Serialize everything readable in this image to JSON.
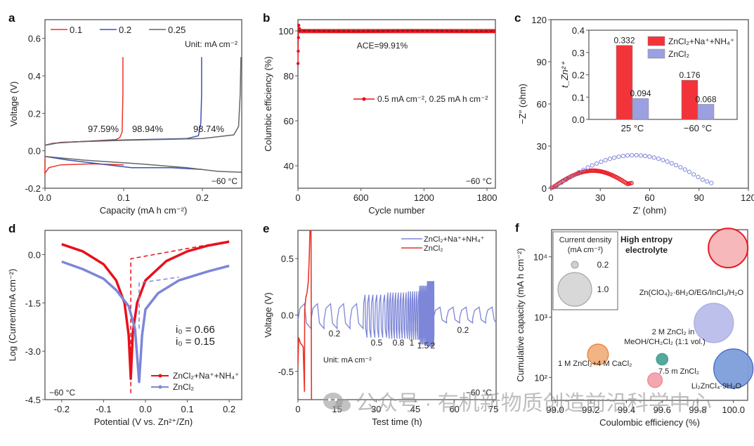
{
  "watermark": {
    "text": "公众号 · 有机新物质创造前沿科学中心",
    "icon": "wechat-icon"
  },
  "chart_data": [
    {
      "panel": "a",
      "type": "line",
      "xlabel": "Capacity (mA h cm⁻²)",
      "ylabel": "Voltage (V)",
      "xlim": [
        0,
        0.25
      ],
      "ylim": [
        -0.2,
        0.7
      ],
      "xticks": [
        0.0,
        0.1,
        0.2
      ],
      "yticks": [
        -0.2,
        0.0,
        0.2,
        0.4,
        0.6
      ],
      "xtick_labels": [
        "0.0",
        "0.1",
        "0.2"
      ],
      "ytick_labels": [
        "-0.2",
        "0.0",
        "0.2",
        "0.4",
        "0.6"
      ],
      "legend_position": "top",
      "unit_note": "Unit: mA cm⁻²",
      "temperature": "−60 °C",
      "series": [
        {
          "name": "0.1",
          "color": "#e8342a",
          "charge": [
            [
              0,
              0.03
            ],
            [
              0.01,
              0.04
            ],
            [
              0.05,
              0.05
            ],
            [
              0.09,
              0.06
            ],
            [
              0.095,
              0.07
            ],
            [
              0.098,
              0.1
            ],
            [
              0.099,
              0.3
            ],
            [
              0.099,
              0.5
            ]
          ],
          "discharge": [
            [
              0,
              -0.04
            ],
            [
              0.0,
              -0.12
            ],
            [
              0.005,
              -0.09
            ],
            [
              0.02,
              -0.075
            ],
            [
              0.06,
              -0.07
            ],
            [
              0.1,
              -0.075
            ]
          ],
          "ce_label": "97.59%"
        },
        {
          "name": "0.2",
          "color": "#3a53b5",
          "charge": [
            [
              0,
              0.03
            ],
            [
              0.02,
              0.045
            ],
            [
              0.1,
              0.058
            ],
            [
              0.18,
              0.065
            ],
            [
              0.195,
              0.08
            ],
            [
              0.198,
              0.15
            ],
            [
              0.199,
              0.3
            ],
            [
              0.199,
              0.5
            ]
          ],
          "discharge": [
            [
              0,
              -0.03
            ],
            [
              0.03,
              -0.05
            ],
            [
              0.08,
              -0.075
            ],
            [
              0.11,
              -0.09
            ],
            [
              0.16,
              -0.09
            ],
            [
              0.2,
              -0.1
            ]
          ],
          "ce_label": "98.94%"
        },
        {
          "name": "0.25",
          "color": "#666666",
          "charge": [
            [
              0,
              0.03
            ],
            [
              0.02,
              0.045
            ],
            [
              0.1,
              0.056
            ],
            [
              0.2,
              0.065
            ],
            [
              0.24,
              0.085
            ],
            [
              0.246,
              0.13
            ],
            [
              0.248,
              0.3
            ],
            [
              0.249,
              0.5
            ]
          ],
          "discharge": [
            [
              0,
              -0.03
            ],
            [
              0.05,
              -0.05
            ],
            [
              0.12,
              -0.07
            ],
            [
              0.18,
              -0.09
            ],
            [
              0.22,
              -0.11
            ],
            [
              0.25,
              -0.115
            ]
          ],
          "ce_label": "98.74%"
        }
      ]
    },
    {
      "panel": "b",
      "type": "scatter",
      "xlabel": "Cycle number",
      "ylabel": "Columbic efficiency (%)",
      "xlim": [
        0,
        1880
      ],
      "ylim": [
        30,
        105
      ],
      "xticks": [
        0,
        600,
        1200,
        1800
      ],
      "yticks": [
        40,
        60,
        80,
        100
      ],
      "xtick_labels": [
        "0",
        "600",
        "1200",
        "1800"
      ],
      "ytick_labels": [
        "40",
        "60",
        "80",
        "100"
      ],
      "annotation": "ACE=99.91%",
      "temperature": "−60 °C",
      "legend_position": "center-right",
      "series": [
        {
          "name": "0.5 mA cm⁻², 0.25 mA h cm⁻²",
          "color": "#e8101a",
          "initial_points": [
            [
              1,
              85.5
            ],
            [
              3,
              91
            ],
            [
              5,
              97
            ],
            [
              8,
              102.5
            ],
            [
              15,
              101
            ]
          ],
          "steady_value": 99.91,
          "cycles_to": 1880
        }
      ],
      "reference_line": 100
    },
    {
      "panel": "c",
      "type": "scatter",
      "xlabel": "Z′ (ohm)",
      "ylabel": "−Z″ (ohm)",
      "xlim": [
        0,
        120
      ],
      "ylim": [
        0,
        120
      ],
      "xticks": [
        0,
        30,
        60,
        90,
        120
      ],
      "yticks": [
        0,
        30,
        60,
        90,
        120
      ],
      "xtick_labels": [
        "0",
        "30",
        "60",
        "90",
        "120"
      ],
      "ytick_labels": [
        "0",
        "30",
        "60",
        "90",
        "120"
      ],
      "series": [
        {
          "name": "ZnCl₂+Na⁺+NH₄⁺",
          "color": "#e8101a",
          "arc": {
            "start": 0.5,
            "end": 49,
            "peak_y": 12.5,
            "peak_x": 23,
            "end_y": 2.5
          }
        },
        {
          "name": "ZnCl₂",
          "color": "#7d86d8",
          "arc": {
            "start": 1,
            "end": 97.5,
            "peak_y": 23.5,
            "peak_x": 52,
            "end_y": 1.5
          }
        }
      ],
      "inset": {
        "type": "bar",
        "ylabel": "t_Zn²⁺",
        "ylim": [
          0,
          0.4
        ],
        "yticks": [
          0.0,
          0.1,
          0.2,
          0.3,
          0.4
        ],
        "ytick_labels": [
          "0.0",
          "0.1",
          "0.2",
          "0.3",
          "0.4"
        ],
        "categories": [
          "25 °C",
          "−60 °C"
        ],
        "legend_position": "top-right",
        "series": [
          {
            "name": "ZnCl₂+Na⁺+NH₄⁺",
            "color": "#f2333a",
            "values": [
              0.332,
              0.176
            ],
            "labels": [
              "0.332",
              "0.176"
            ]
          },
          {
            "name": "ZnCl₂",
            "color": "#9aa0e0",
            "values": [
              0.094,
              0.068
            ],
            "labels": [
              "0.094",
              "0.068"
            ]
          }
        ]
      }
    },
    {
      "panel": "d",
      "type": "line",
      "xlabel": "Potential (V vs. Zn²⁺/Zn)",
      "ylabel": "Log (Current/mA cm⁻²)",
      "xlim": [
        -0.24,
        0.23
      ],
      "ylim": [
        -4.5,
        0.75
      ],
      "xticks": [
        -0.2,
        -0.1,
        0.0,
        0.1,
        0.2
      ],
      "yticks": [
        -4.5,
        -3.0,
        -1.5,
        0.0
      ],
      "xtick_labels": [
        "-0.2",
        "-0.1",
        "0.0",
        "0.1",
        "0.2"
      ],
      "ytick_labels": [
        "-4.5",
        "-3.0",
        "-1.5",
        "0.0"
      ],
      "temperature": "−60 °C",
      "legend_position": "bottom-right",
      "annotations": [
        {
          "text": "i₀ = 0.66",
          "color": "#e8101a"
        },
        {
          "text": "i₀ = 0.15",
          "color": "#7d86d8"
        }
      ],
      "series": [
        {
          "name": "ZnCl₂+Na⁺+NH₄⁺",
          "color": "#e8101a",
          "e_corr": -0.035,
          "min_log": -3.85,
          "points": [
            [
              -0.2,
              0.32
            ],
            [
              -0.15,
              0.1
            ],
            [
              -0.1,
              -0.3
            ],
            [
              -0.07,
              -0.8
            ],
            [
              -0.05,
              -1.5
            ],
            [
              -0.04,
              -2.5
            ],
            [
              -0.035,
              -3.85
            ],
            [
              -0.03,
              -2.4
            ],
            [
              -0.02,
              -1.5
            ],
            [
              0.0,
              -0.8
            ],
            [
              0.05,
              -0.2
            ],
            [
              0.1,
              0.1
            ],
            [
              0.15,
              0.28
            ],
            [
              0.2,
              0.4
            ]
          ],
          "tafel": [
            [
              -0.035,
              -4.3
            ],
            [
              -0.035,
              -0.13
            ],
            [
              0.2,
              0.42
            ]
          ]
        },
        {
          "name": "ZnCl₂",
          "color": "#7d86d8",
          "e_corr": -0.015,
          "min_log": -3.95,
          "points": [
            [
              -0.2,
              -0.22
            ],
            [
              -0.15,
              -0.45
            ],
            [
              -0.1,
              -0.75
            ],
            [
              -0.07,
              -1.1
            ],
            [
              -0.04,
              -1.6
            ],
            [
              -0.025,
              -2.3
            ],
            [
              -0.015,
              -3.95
            ],
            [
              -0.008,
              -2.5
            ],
            [
              0.0,
              -1.7
            ],
            [
              0.03,
              -1.2
            ],
            [
              0.08,
              -0.8
            ],
            [
              0.15,
              -0.52
            ],
            [
              0.2,
              -0.35
            ]
          ],
          "tafel": [
            [
              -0.015,
              -2.3
            ],
            [
              -0.015,
              -0.88
            ],
            [
              0.08,
              -0.7
            ]
          ]
        }
      ]
    },
    {
      "panel": "e",
      "type": "line",
      "xlabel": "Test time (h)",
      "ylabel": "Voltage (V)",
      "xlim": [
        0,
        76
      ],
      "ylim": [
        -0.75,
        0.75
      ],
      "xticks": [
        0,
        15,
        30,
        45,
        60,
        75
      ],
      "yticks": [
        -0.5,
        0.0,
        0.5
      ],
      "xtick_labels": [
        "0",
        "15",
        "30",
        "45",
        "60",
        "75"
      ],
      "ytick_labels": [
        "-0.5",
        "0.0",
        "0.5"
      ],
      "unit_note": "Unit: mA cm⁻²",
      "temperature": "−60 °C",
      "legend_position": "top-right",
      "rate_labels": [
        "0.2",
        "0.5",
        "0.8",
        "1",
        "1.5",
        "2",
        "0.2"
      ],
      "rate_segments": [
        {
          "rate": "0.2",
          "t_start": 0,
          "t_end": 25,
          "high": 0.1,
          "low": -0.12
        },
        {
          "rate": "0.5",
          "t_start": 25,
          "t_end": 34,
          "high": 0.18,
          "low": -0.2
        },
        {
          "rate": "0.8",
          "t_start": 34,
          "t_end": 42,
          "high": 0.2,
          "low": -0.21
        },
        {
          "rate": "1",
          "t_start": 42,
          "t_end": 46.5,
          "high": 0.21,
          "low": -0.22
        },
        {
          "rate": "1.5",
          "t_start": 46.5,
          "t_end": 49.5,
          "high": 0.26,
          "low": -0.26
        },
        {
          "rate": "2",
          "t_start": 49.5,
          "t_end": 52,
          "high": 0.3,
          "low": -0.28
        },
        {
          "rate": "0.2",
          "t_start": 52,
          "t_end": 76,
          "high": 0.07,
          "low": -0.07
        }
      ],
      "series": [
        {
          "name": "ZnCl₂+Na⁺+NH₄⁺",
          "color": "#7d86d8"
        },
        {
          "name": "ZnCl₂",
          "color": "#e8342a",
          "points": [
            [
              0,
              -0.45
            ],
            [
              0.3,
              -0.2
            ],
            [
              1,
              -0.25
            ],
            [
              2,
              -0.28
            ],
            [
              2.5,
              -0.68
            ],
            [
              2.6,
              0.05
            ],
            [
              3,
              0.15
            ],
            [
              3.5,
              0.2
            ],
            [
              4,
              0.3
            ],
            [
              4.3,
              0.5
            ],
            [
              4.6,
              0.75
            ],
            [
              5,
              0.75
            ],
            [
              5.2,
              -0.75
            ]
          ]
        }
      ]
    },
    {
      "panel": "f",
      "type": "scatter",
      "xlabel": "Coulombic efficiency (%)",
      "ylabel": "Cumulative capacity (mA h cm⁻²)",
      "xlim": [
        98.98,
        100.08
      ],
      "ylim_log10": [
        1.62,
        4.45
      ],
      "xticks": [
        99.0,
        99.2,
        99.4,
        99.6,
        99.8,
        100.0
      ],
      "xtick_labels": [
        "99.0",
        "99.2",
        "99.4",
        "99.6",
        "99.8",
        "100.0"
      ],
      "yticks": [
        100,
        1000,
        10000
      ],
      "ytick_labels": [
        "10²",
        "10³",
        "10⁴"
      ],
      "size_legend": {
        "title_line1": "Current density",
        "title_line2": "(mA cm⁻²)",
        "entries": [
          {
            "value": 0.2,
            "label": "0.2"
          },
          {
            "value": 1.0,
            "label": "1.0"
          }
        ]
      },
      "points": [
        {
          "label": "High entropy electrolyte",
          "label_line1": "High entropy",
          "label_line2": "electrolyte",
          "x": 99.97,
          "y": 14000,
          "current_density": 1.0,
          "color": "#e8101a",
          "fill": "#f7b5b8",
          "bold": true
        },
        {
          "label": "Zn(ClO₄)₂·6H₂O/EG/InCl₃/H₂O",
          "x": 99.89,
          "y": 800,
          "current_density": 1.0,
          "color": "#a6abe3",
          "fill": "#b9bde9"
        },
        {
          "label": "2 M ZnCl₂ in MeOH/CH₂Cl₂ (1:1 vol.)",
          "label_line1": "2 M ZnCl₂ in",
          "label_line2": "MeOH/CH₂Cl₂ (1:1 vol.)",
          "x": 99.6,
          "y": 200,
          "current_density": 0.1,
          "color": "#3b9a8c",
          "fill": "#4aa597"
        },
        {
          "label": "1 M ZnCl₂+4 M CaCl₂",
          "x": 99.24,
          "y": 240,
          "current_density": 0.4,
          "color": "#e87a2b",
          "fill": "#f2b07f"
        },
        {
          "label": "7.5 m ZnCl₂",
          "x": 99.56,
          "y": 90,
          "current_density": 0.2,
          "color": "#ee7f8c",
          "fill": "#f4a3ad"
        },
        {
          "label": "Li₂ZnCl₄·9H₂O",
          "x": 100.0,
          "y": 140,
          "current_density": 1.0,
          "color": "#3a63c4",
          "fill": "#7e9fdc"
        }
      ]
    }
  ]
}
